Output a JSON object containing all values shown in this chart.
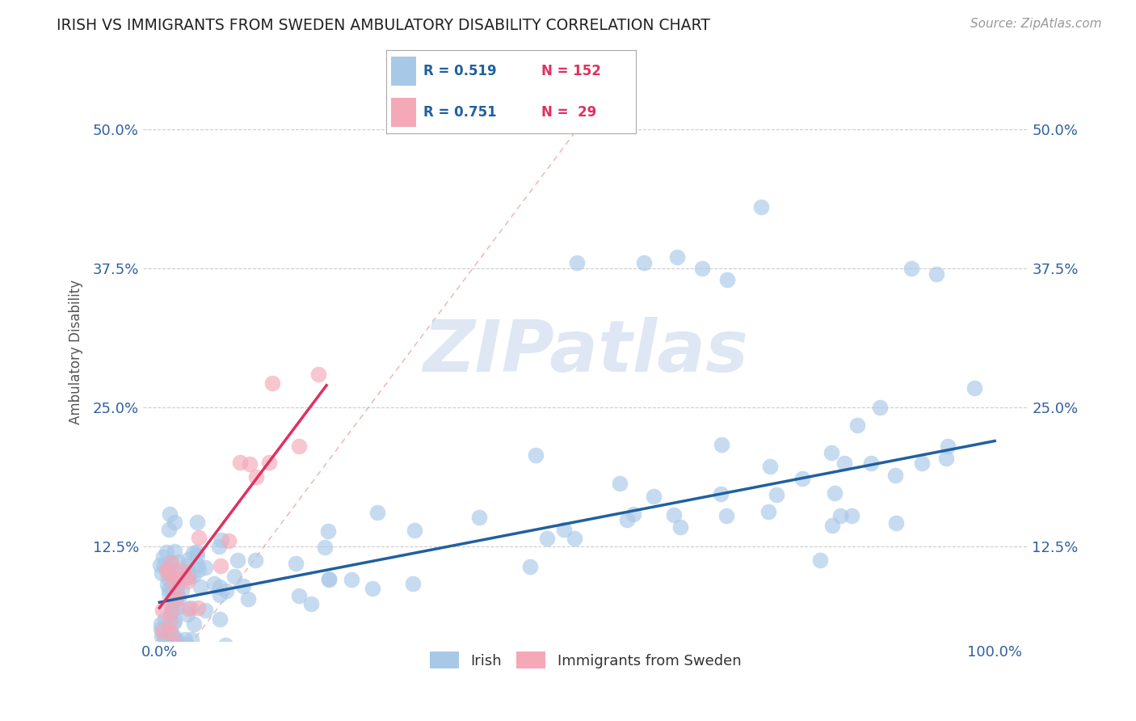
{
  "title": "IRISH VS IMMIGRANTS FROM SWEDEN AMBULATORY DISABILITY CORRELATION CHART",
  "source_text": "Source: ZipAtlas.com",
  "ylabel_label": "Ambulatory Disability",
  "ylabel_ticks": [
    0.125,
    0.25,
    0.375,
    0.5
  ],
  "ylabel_tick_labels": [
    "12.5%",
    "25.0%",
    "37.5%",
    "50.0%"
  ],
  "xlim": [
    0.0,
    1.0
  ],
  "ylim": [
    0.04,
    0.55
  ],
  "irish_color": "#A8C8E8",
  "sweden_color": "#F4A8B8",
  "irish_line_color": "#2060A0",
  "sweden_line_color": "#E03060",
  "diag_line_color": "#F0B0B0",
  "R_irish": 0.519,
  "N_irish": 152,
  "R_sweden": 0.751,
  "N_sweden": 29,
  "legend_label_1": "Irish",
  "legend_label_2": "Immigrants from Sweden",
  "background_color": "#FFFFFF",
  "watermark_color": "#C8D8EC"
}
